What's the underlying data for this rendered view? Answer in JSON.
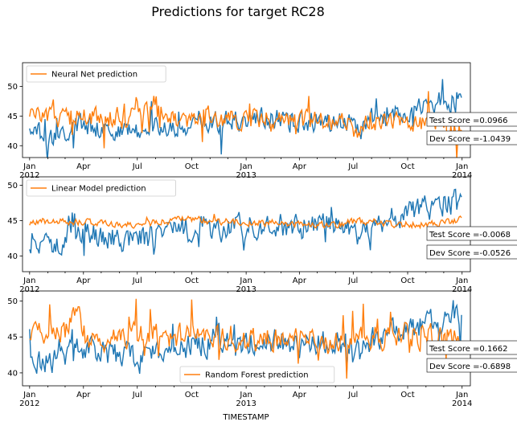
{
  "figure": {
    "title": "Predictions for target RC28",
    "xlabel": "TIMESTAMP"
  },
  "colors": {
    "actual": "#1f77b4",
    "prediction": "#ff7f0e",
    "axes": "#000000",
    "background": "#ffffff"
  },
  "chart_data": [
    {
      "type": "line",
      "legend": "Neural Net prediction",
      "legend_loc": "upper-left",
      "test_score": "Test Score =0.0966",
      "dev_score": "Dev Score =-1.0439",
      "x_ticks": [
        "Jan\n2012",
        "Apr",
        "Jul",
        "Oct",
        "Jan\n2013",
        "Apr",
        "Jul",
        "Oct",
        "Jan\n2014"
      ],
      "y_ticks": [
        40,
        45,
        50
      ],
      "ylim": [
        38,
        54
      ],
      "xlim": [
        "2011-12-20",
        "2014-01-15"
      ],
      "series": [
        {
          "role": "actual",
          "anchors": [
            [
              0,
              42.5
            ],
            [
              20,
              42
            ],
            [
              40,
              41.3
            ],
            [
              60,
              42.5
            ],
            [
              90,
              43.5
            ],
            [
              120,
              43
            ],
            [
              150,
              42.5
            ],
            [
              180,
              42.5
            ],
            [
              210,
              43
            ],
            [
              240,
              43
            ],
            [
              270,
              43.8
            ],
            [
              300,
              44
            ],
            [
              330,
              44
            ],
            [
              365,
              44.3
            ],
            [
              390,
              44.5
            ],
            [
              420,
              44.5
            ],
            [
              450,
              44
            ],
            [
              480,
              44.2
            ],
            [
              510,
              44.2
            ],
            [
              540,
              44
            ],
            [
              560,
              43
            ],
            [
              580,
              44.5
            ],
            [
              600,
              45
            ],
            [
              630,
              46
            ],
            [
              660,
              46.5
            ],
            [
              690,
              47
            ],
            [
              700,
              47.5
            ],
            [
              720,
              47.5
            ],
            [
              730,
              47
            ]
          ]
        },
        {
          "name": "Neural Net prediction",
          "role": "prediction",
          "anchors": [
            [
              0,
              44.5
            ],
            [
              25,
              45.5
            ],
            [
              45,
              44.5
            ],
            [
              70,
              45
            ],
            [
              90,
              45.2
            ],
            [
              100,
              44.7
            ],
            [
              125,
              44.5
            ],
            [
              150,
              45.3
            ],
            [
              160,
              44
            ],
            [
              175,
              46.3
            ],
            [
              180,
              48
            ],
            [
              190,
              45.5
            ],
            [
              205,
              46
            ],
            [
              210,
              47.5
            ],
            [
              220,
              47
            ],
            [
              240,
              44.7
            ],
            [
              260,
              44.3
            ],
            [
              280,
              44.7
            ],
            [
              300,
              45.3
            ],
            [
              330,
              44.3
            ],
            [
              350,
              44.4
            ],
            [
              365,
              44.8
            ],
            [
              380,
              44.4
            ],
            [
              390,
              44.5
            ],
            [
              420,
              44.8
            ],
            [
              450,
              44.3
            ],
            [
              480,
              44.3
            ],
            [
              510,
              44
            ],
            [
              540,
              43.7
            ],
            [
              550,
              42
            ],
            [
              565,
              42
            ],
            [
              570,
              44
            ],
            [
              600,
              44.5
            ],
            [
              630,
              44.5
            ],
            [
              660,
              44
            ],
            [
              680,
              43.7
            ],
            [
              700,
              43.3
            ],
            [
              720,
              43.3
            ],
            [
              730,
              43.5
            ]
          ]
        }
      ]
    },
    {
      "type": "line",
      "legend": "Linear Model prediction",
      "legend_loc": "upper-left",
      "test_score": "Test Score =-0.0068",
      "dev_score": "Dev Score =-0.0526",
      "x_ticks": [
        "Jan\n2012",
        "Apr",
        "Jul",
        "Oct",
        "Jan\n2013",
        "Apr",
        "Jul",
        "Oct",
        "Jan\n2014"
      ],
      "y_ticks": [
        40,
        45,
        50
      ],
      "ylim": [
        37.8,
        51.2
      ],
      "xlim": [
        "2011-12-20",
        "2014-01-15"
      ],
      "series": [
        {
          "role": "actual",
          "anchors": [
            [
              0,
              42.5
            ],
            [
              20,
              42
            ],
            [
              40,
              41.3
            ],
            [
              60,
              42.5
            ],
            [
              90,
              43.5
            ],
            [
              120,
              43
            ],
            [
              150,
              42.5
            ],
            [
              180,
              42.5
            ],
            [
              210,
              43
            ],
            [
              240,
              43
            ],
            [
              270,
              43.8
            ],
            [
              300,
              44
            ],
            [
              330,
              44
            ],
            [
              365,
              44.3
            ],
            [
              390,
              44.5
            ],
            [
              420,
              44.5
            ],
            [
              450,
              44
            ],
            [
              480,
              44.2
            ],
            [
              510,
              44.2
            ],
            [
              540,
              44
            ],
            [
              560,
              43
            ],
            [
              580,
              44.5
            ],
            [
              600,
              45
            ],
            [
              630,
              46
            ],
            [
              660,
              46.5
            ],
            [
              690,
              47
            ],
            [
              700,
              47.5
            ],
            [
              720,
              47.5
            ],
            [
              730,
              47
            ]
          ]
        },
        {
          "name": "Linear Model prediction",
          "role": "prediction",
          "anchors": [
            [
              0,
              44.8
            ],
            [
              30,
              45
            ],
            [
              60,
              44.8
            ],
            [
              90,
              44.8
            ],
            [
              120,
              44.7
            ],
            [
              150,
              44.5
            ],
            [
              180,
              44.4
            ],
            [
              210,
              44.7
            ],
            [
              240,
              45
            ],
            [
              270,
              45.2
            ],
            [
              300,
              45
            ],
            [
              330,
              44.9
            ],
            [
              365,
              44.8
            ],
            [
              400,
              44.7
            ],
            [
              430,
              44.6
            ],
            [
              460,
              44.5
            ],
            [
              490,
              44.3
            ],
            [
              520,
              44.3
            ],
            [
              540,
              44.8
            ],
            [
              560,
              45
            ],
            [
              580,
              44.9
            ],
            [
              600,
              44.7
            ],
            [
              630,
              44.5
            ],
            [
              660,
              44.4
            ],
            [
              690,
              44.5
            ],
            [
              720,
              45
            ],
            [
              730,
              45.3
            ]
          ]
        }
      ]
    },
    {
      "type": "line",
      "legend": "Random Forest prediction",
      "legend_loc": "lower-center",
      "test_score": "Test Score =0.1662",
      "dev_score": "Dev Score =-0.6898",
      "x_ticks": [
        "Jan\n2012",
        "Apr",
        "Jul",
        "Oct",
        "Jan\n2013",
        "Apr",
        "Jul",
        "Oct",
        "Jan\n2014"
      ],
      "y_ticks": [
        40,
        45,
        50
      ],
      "ylim": [
        38.2,
        51.4
      ],
      "xlim": [
        "2011-12-20",
        "2014-01-15"
      ],
      "series": [
        {
          "role": "actual",
          "anchors": [
            [
              0,
              42.5
            ],
            [
              20,
              42
            ],
            [
              40,
              41.3
            ],
            [
              60,
              42.5
            ],
            [
              90,
              43.5
            ],
            [
              120,
              43
            ],
            [
              150,
              42.5
            ],
            [
              180,
              42.5
            ],
            [
              210,
              43
            ],
            [
              240,
              43
            ],
            [
              270,
              43.8
            ],
            [
              300,
              44
            ],
            [
              330,
              44
            ],
            [
              365,
              44.3
            ],
            [
              390,
              44.5
            ],
            [
              420,
              44.5
            ],
            [
              450,
              44
            ],
            [
              480,
              44.2
            ],
            [
              510,
              44.2
            ],
            [
              540,
              44
            ],
            [
              560,
              43
            ],
            [
              580,
              44.5
            ],
            [
              600,
              45
            ],
            [
              630,
              46
            ],
            [
              660,
              46.5
            ],
            [
              690,
              47
            ],
            [
              700,
              47.5
            ],
            [
              720,
              47.5
            ],
            [
              730,
              47
            ]
          ]
        },
        {
          "name": "Random Forest prediction",
          "role": "prediction",
          "anchors": [
            [
              0,
              45
            ],
            [
              20,
              46
            ],
            [
              40,
              45.5
            ],
            [
              60,
              45.8
            ],
            [
              70,
              47.7
            ],
            [
              85,
              47.7
            ],
            [
              90,
              44
            ],
            [
              120,
              44.5
            ],
            [
              150,
              45
            ],
            [
              180,
              45.3
            ],
            [
              210,
              45.5
            ],
            [
              240,
              45
            ],
            [
              270,
              45.5
            ],
            [
              300,
              44.8
            ],
            [
              330,
              45
            ],
            [
              365,
              44.5
            ],
            [
              390,
              44.8
            ],
            [
              420,
              44.5
            ],
            [
              450,
              44.5
            ],
            [
              480,
              44.3
            ],
            [
              510,
              44.2
            ],
            [
              540,
              44.5
            ],
            [
              570,
              45
            ],
            [
              600,
              45
            ],
            [
              630,
              45.3
            ],
            [
              660,
              45.2
            ],
            [
              690,
              45
            ],
            [
              720,
              45
            ],
            [
              730,
              45
            ]
          ]
        }
      ]
    }
  ]
}
